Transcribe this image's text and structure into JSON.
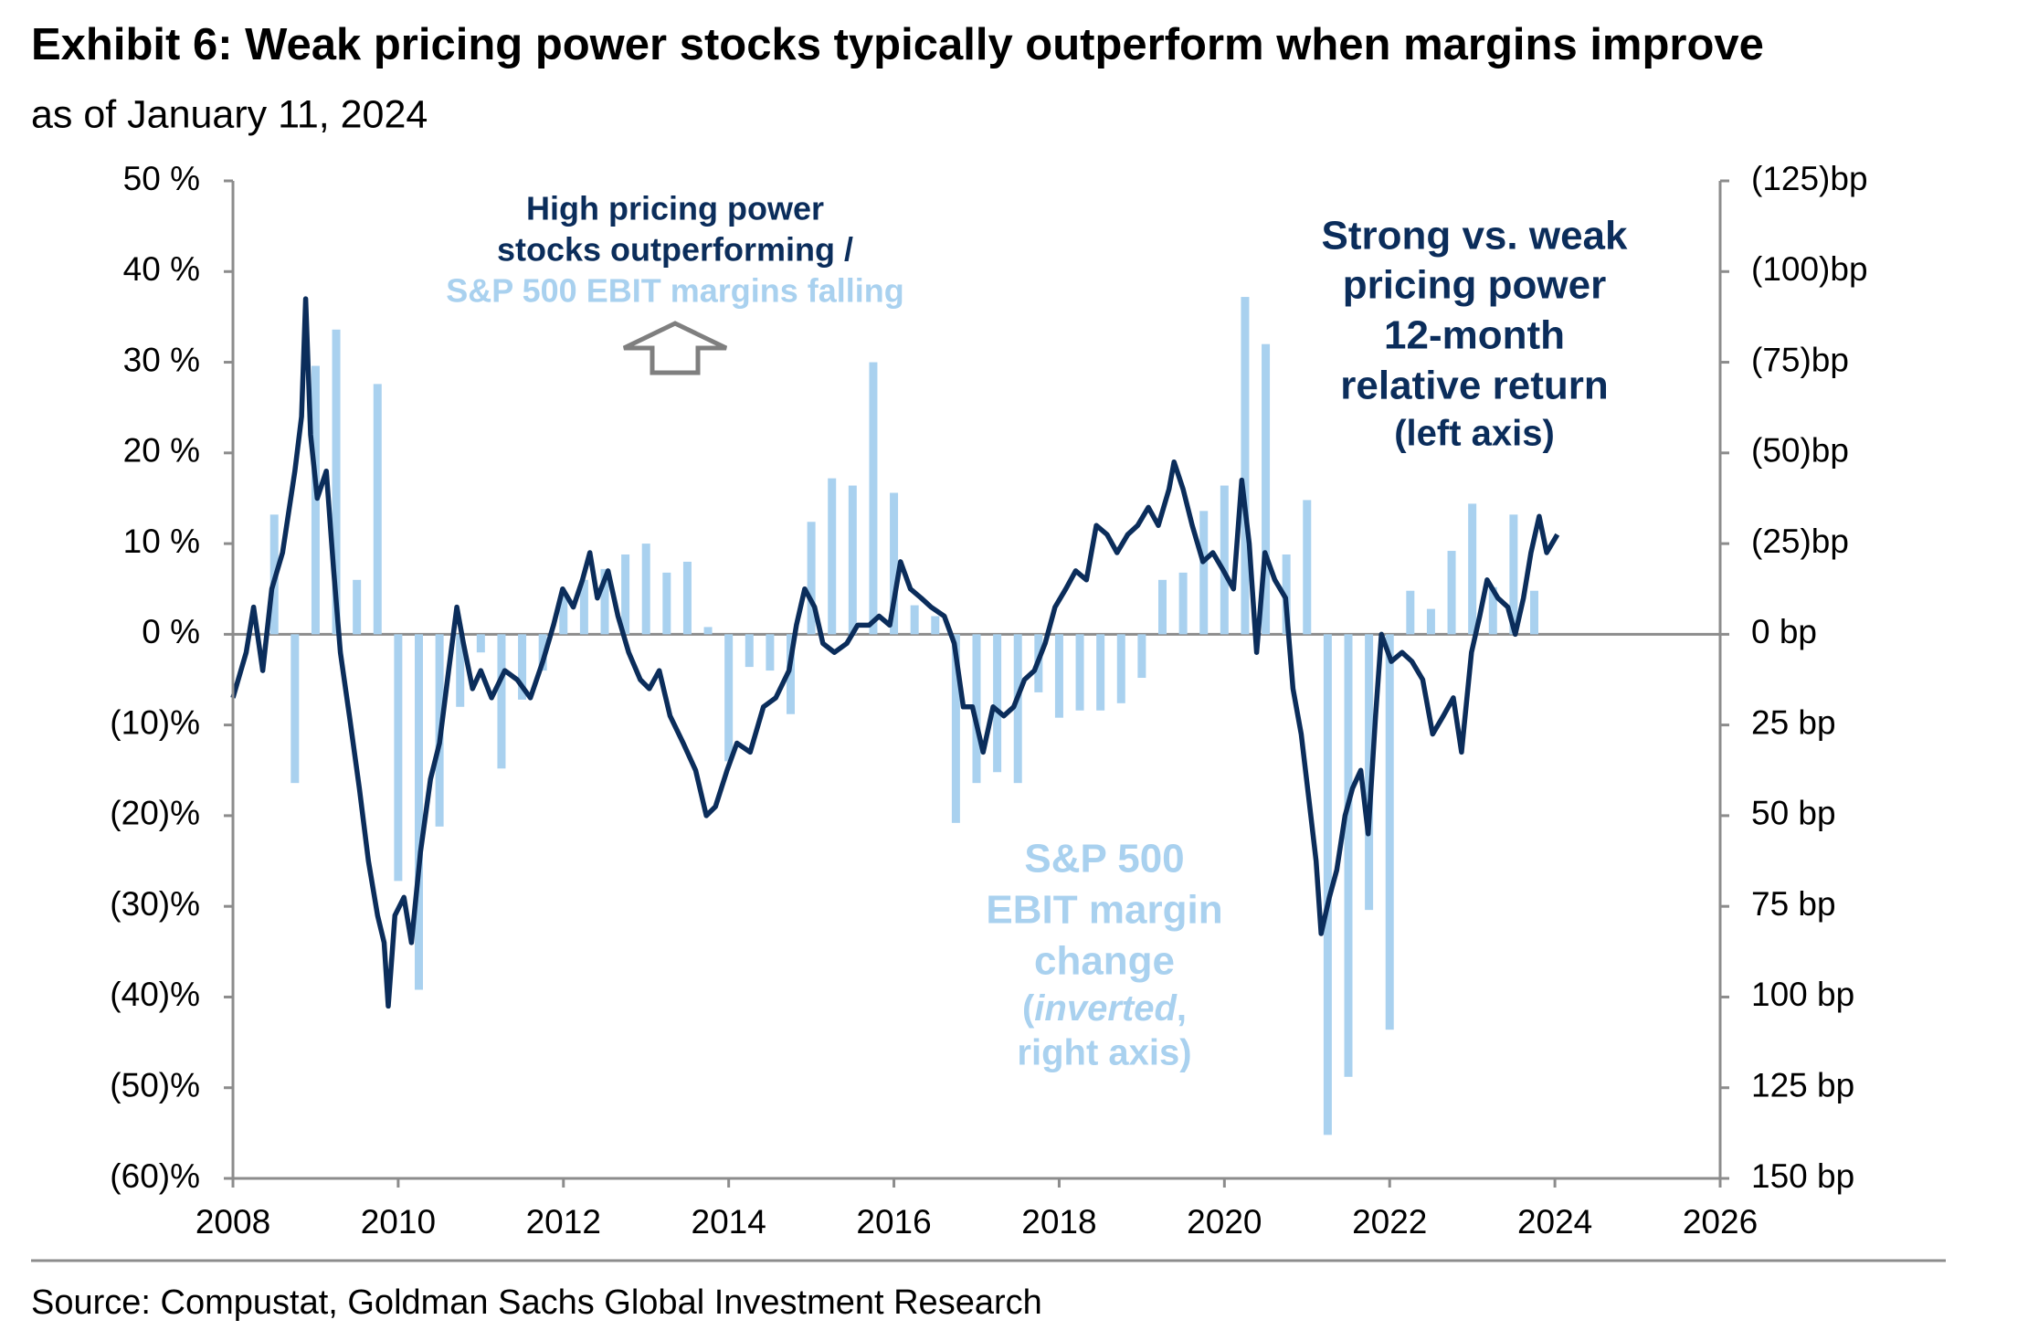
{
  "chart_data": {
    "type": "combo",
    "title": "Exhibit 6: Weak pricing power stocks typically outperform when margins improve",
    "subtitle": "as of January 11, 2024",
    "source": "Source: Compustat, Goldman Sachs Global Investment Research",
    "xlim": [
      2008,
      2026
    ],
    "xticks": [
      2008,
      2010,
      2012,
      2014,
      2016,
      2018,
      2020,
      2022,
      2024,
      2026
    ],
    "ylim": [
      -60,
      50
    ],
    "yticks": [
      {
        "value": 50,
        "label": "50 %"
      },
      {
        "value": 40,
        "label": "40 %"
      },
      {
        "value": 30,
        "label": "30 %"
      },
      {
        "value": 20,
        "label": "20 %"
      },
      {
        "value": 10,
        "label": "10 %"
      },
      {
        "value": 0,
        "label": "0 %"
      },
      {
        "value": -10,
        "label": "(10)%"
      },
      {
        "value": -20,
        "label": "(20)%"
      },
      {
        "value": -30,
        "label": "(30)%"
      },
      {
        "value": -40,
        "label": "(40)%"
      },
      {
        "value": -50,
        "label": "(50)%"
      },
      {
        "value": -60,
        "label": "(60)%"
      }
    ],
    "y2lim": [
      -125,
      150
    ],
    "y2_inverted": true,
    "y2ticks": [
      {
        "value": -125,
        "label": "(125)bp"
      },
      {
        "value": -100,
        "label": "(100)bp"
      },
      {
        "value": -75,
        "label": "(75)bp"
      },
      {
        "value": -50,
        "label": "(50)bp"
      },
      {
        "value": -25,
        "label": "(25)bp"
      },
      {
        "value": 0,
        "label": "0 bp"
      },
      {
        "value": 25,
        "label": "25 bp"
      },
      {
        "value": 50,
        "label": "50 bp"
      },
      {
        "value": 75,
        "label": "75 bp"
      },
      {
        "value": 100,
        "label": "100 bp"
      },
      {
        "value": 125,
        "label": "125 bp"
      },
      {
        "value": 150,
        "label": "150 bp"
      }
    ],
    "series": [
      {
        "type": "bar",
        "axis": "y2",
        "color": "#a9d1ef",
        "x": [
          2008.5,
          2008.75,
          2009,
          2009.25,
          2009.5,
          2009.75,
          2010,
          2010.25,
          2010.5,
          2010.75,
          2011,
          2011.25,
          2011.5,
          2011.75,
          2012,
          2012.25,
          2012.5,
          2012.75,
          2013,
          2013.25,
          2013.5,
          2013.75,
          2014,
          2014.25,
          2014.5,
          2014.75,
          2015,
          2015.25,
          2015.5,
          2015.75,
          2016,
          2016.25,
          2016.5,
          2016.75,
          2017,
          2017.25,
          2017.5,
          2017.75,
          2018,
          2018.25,
          2018.5,
          2018.75,
          2019,
          2019.25,
          2019.5,
          2019.75,
          2020,
          2020.25,
          2020.5,
          2020.75,
          2021,
          2021.25,
          2021.5,
          2021.75,
          2022,
          2022.25,
          2022.5,
          2022.75,
          2023,
          2023.25,
          2023.5,
          2023.75
        ],
        "values": [
          -33,
          41,
          -74,
          -84,
          -15,
          -69,
          68,
          98,
          53,
          20,
          5,
          37,
          18,
          10,
          -11,
          -15,
          -18,
          -22,
          -25,
          -17,
          -20,
          -2,
          35,
          9,
          10,
          22,
          -31,
          -43,
          -41,
          -75,
          -39,
          -8,
          -5,
          52,
          41,
          38,
          41,
          16,
          23,
          21,
          21,
          19,
          12,
          -15,
          -17,
          -34,
          -41,
          -93,
          -80,
          -22,
          -37,
          138,
          122,
          76,
          109,
          -12,
          -7,
          -23,
          -36,
          -13,
          -33,
          -12
        ]
      },
      {
        "type": "line",
        "axis": "y",
        "color": "#0b2d5b",
        "x": [
          2008.0,
          2008.16,
          2008.25,
          2008.36,
          2008.47,
          2008.6,
          2008.75,
          2008.83,
          2008.88,
          2008.94,
          2009.02,
          2009.13,
          2009.22,
          2009.3,
          2009.41,
          2009.53,
          2009.64,
          2009.75,
          2009.83,
          2009.88,
          2009.96,
          2010.07,
          2010.16,
          2010.27,
          2010.39,
          2010.5,
          2010.61,
          2010.71,
          2010.79,
          2010.9,
          2011.0,
          2011.13,
          2011.29,
          2011.44,
          2011.6,
          2011.75,
          2011.88,
          2011.99,
          2012.12,
          2012.23,
          2012.32,
          2012.41,
          2012.54,
          2012.66,
          2012.79,
          2012.93,
          2013.04,
          2013.16,
          2013.29,
          2013.45,
          2013.6,
          2013.73,
          2013.84,
          2013.98,
          2014.1,
          2014.26,
          2014.42,
          2014.57,
          2014.73,
          2014.82,
          2014.92,
          2015.04,
          2015.14,
          2015.28,
          2015.43,
          2015.56,
          2015.7,
          2015.82,
          2015.95,
          2016.08,
          2016.2,
          2016.33,
          2016.45,
          2016.61,
          2016.73,
          2016.84,
          2016.95,
          2017.08,
          2017.2,
          2017.33,
          2017.45,
          2017.58,
          2017.7,
          2017.83,
          2017.95,
          2018.08,
          2018.2,
          2018.33,
          2018.45,
          2018.58,
          2018.7,
          2018.83,
          2018.95,
          2019.08,
          2019.2,
          2019.33,
          2019.39,
          2019.5,
          2019.61,
          2019.74,
          2019.86,
          2019.99,
          2020.11,
          2020.21,
          2020.3,
          2020.39,
          2020.49,
          2020.61,
          2020.74,
          2020.83,
          2020.93,
          2021.02,
          2021.11,
          2021.17,
          2021.27,
          2021.36,
          2021.46,
          2021.55,
          2021.65,
          2021.74,
          2021.83,
          2021.9,
          2022.02,
          2022.15,
          2022.27,
          2022.4,
          2022.52,
          2022.65,
          2022.77,
          2022.87,
          2022.99,
          2023.09,
          2023.18,
          2023.31,
          2023.43,
          2023.52,
          2023.62,
          2023.71,
          2023.81,
          2023.9,
          2024.03
        ],
        "values": [
          -7,
          -2,
          3,
          -4,
          5,
          9,
          18,
          24,
          37,
          22,
          15,
          18,
          7,
          -2,
          -9,
          -17,
          -25,
          -31,
          -34,
          -41,
          -31,
          -29,
          -34,
          -24,
          -16,
          -12,
          -4,
          3,
          -1,
          -6,
          -4,
          -7,
          -4,
          -5,
          -7,
          -3,
          1,
          5,
          3,
          6,
          9,
          4,
          7,
          2,
          -2,
          -5,
          -6,
          -4,
          -9,
          -12,
          -15,
          -20,
          -19,
          -15,
          -12,
          -13,
          -8,
          -7,
          -4,
          1,
          5,
          3,
          -1,
          -2,
          -1,
          1,
          1,
          2,
          1,
          8,
          5,
          4,
          3,
          2,
          -1,
          -8,
          -8,
          -13,
          -8,
          -9,
          -8,
          -5,
          -4,
          -1,
          3,
          5,
          7,
          6,
          12,
          11,
          9,
          11,
          12,
          14,
          12,
          16,
          19,
          16,
          12,
          8,
          9,
          7,
          5,
          17,
          10,
          -2,
          9,
          6,
          4,
          -6,
          -11,
          -18,
          -25,
          -33,
          -29,
          -26,
          -20,
          -17,
          -15,
          -22,
          -9,
          0,
          -3,
          -2,
          -3,
          -5,
          -11,
          -9,
          -7,
          -13,
          -2,
          2,
          6,
          4,
          3,
          0,
          4,
          9,
          13,
          9,
          11
        ]
      }
    ],
    "annotation_high": {
      "lines": [
        "High pricing power",
        "stocks outperforming /"
      ],
      "light": "S&P 500 EBIT margins falling"
    },
    "annotation_line": [
      "Strong vs. weak",
      "pricing power",
      "12-month",
      "relative return",
      "(left axis)"
    ],
    "annotation_bars": {
      "lines": [
        "S&P 500",
        "EBIT margin",
        "change"
      ],
      "open": "(",
      "italic": "inverted",
      "close": ",",
      "last": "right axis)"
    }
  }
}
